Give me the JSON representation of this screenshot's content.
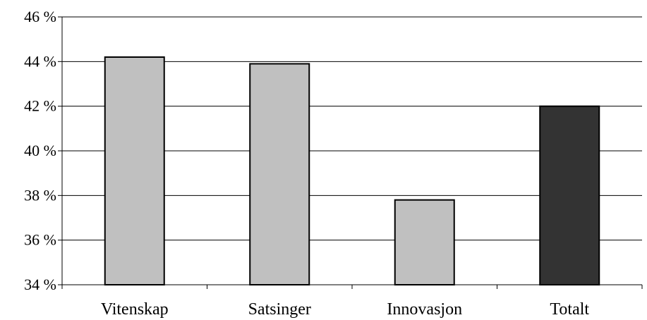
{
  "chart_data": {
    "type": "bar",
    "categories": [
      "Vitenskap",
      "Satsinger",
      "Innovasjon",
      "Totalt"
    ],
    "values": [
      44.2,
      43.9,
      37.8,
      42.0
    ],
    "value_unit": "%",
    "ylim": [
      34,
      46
    ],
    "ytick_step": 2,
    "ytick_labels": [
      "34 %",
      "36 %",
      "38 %",
      "40 %",
      "42 %",
      "44 %",
      "46 %"
    ],
    "grid": true,
    "legend": "none",
    "colors": {
      "bar_default": "#c0c0c0",
      "bar_highlight": "#333333",
      "bar_outline": "#000000",
      "gridline": "#000000"
    },
    "highlight_index": 3
  }
}
